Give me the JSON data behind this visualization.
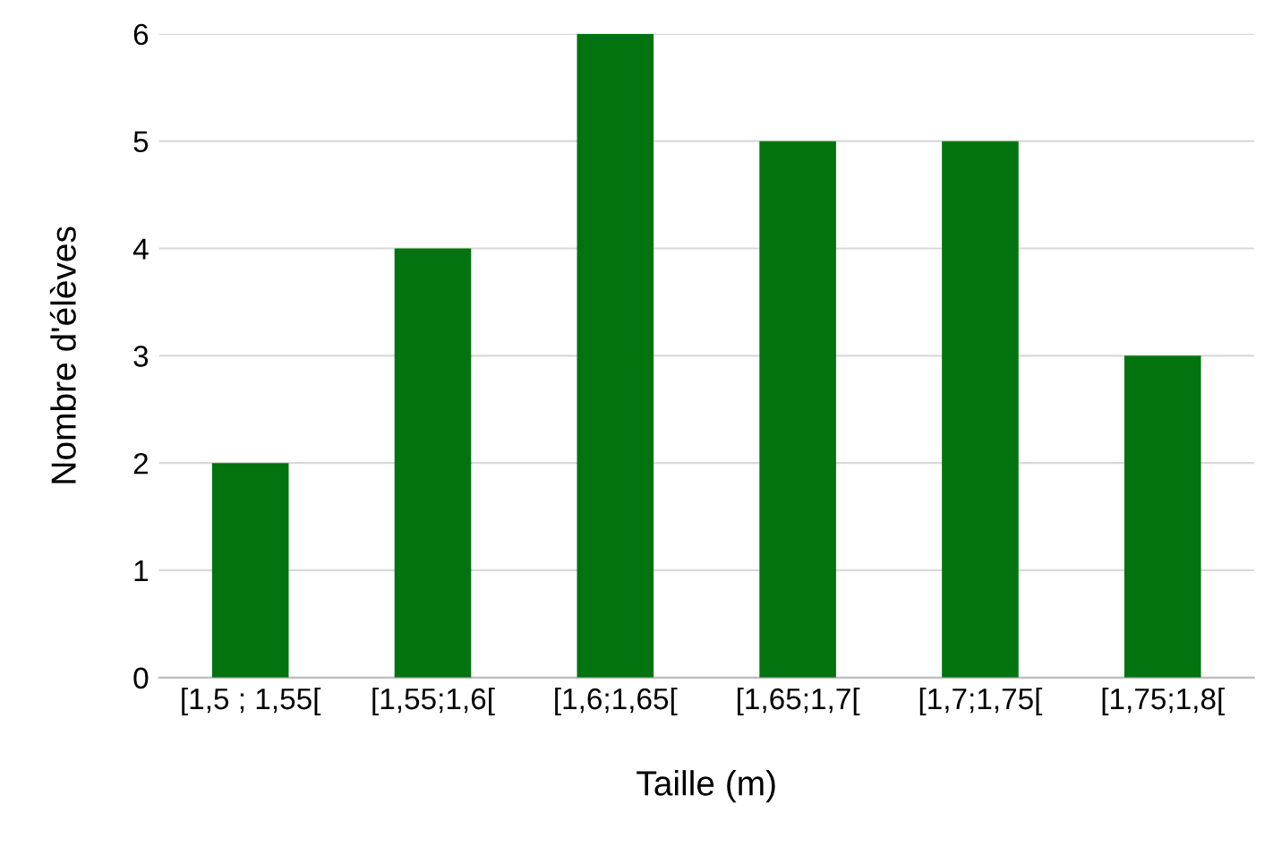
{
  "chart_data": {
    "type": "bar",
    "xlabel": "Taille (m)",
    "ylabel": "Nombre d'élèves",
    "categories": [
      "[1,5 ; 1,55[",
      "[1,55;1,6[",
      "[1,6;1,65[",
      "[1,65;1,7[",
      "[1,7;1,75[",
      "[1,75;1,8["
    ],
    "values": [
      2,
      4,
      6,
      5,
      5,
      3
    ],
    "color": "#037310",
    "ylim": [
      0,
      6
    ],
    "yticks": [
      0,
      1,
      2,
      3,
      4,
      5,
      6
    ],
    "grid": "y"
  }
}
